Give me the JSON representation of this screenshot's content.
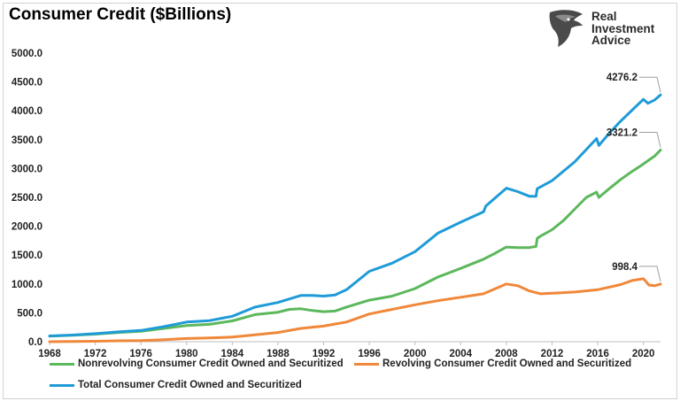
{
  "title": "Consumer Credit ($Billions)",
  "logo": {
    "icon": "eagle-head-icon",
    "line1": "Real",
    "line2": "Investment",
    "line3": "Advice"
  },
  "chart_data": {
    "type": "line",
    "title": "Consumer Credit ($Billions)",
    "xlabel": "",
    "ylabel": "",
    "xlim": [
      1968,
      2021.5
    ],
    "ylim": [
      0,
      5000
    ],
    "yticks": [
      "0.0",
      "500.0",
      "1000.0",
      "1500.0",
      "2000.0",
      "2500.0",
      "3000.0",
      "3500.0",
      "4000.0",
      "4500.0",
      "5000.0"
    ],
    "xticks": [
      "1968",
      "1972",
      "1976",
      "1980",
      "1984",
      "1988",
      "1992",
      "1996",
      "2000",
      "2004",
      "2008",
      "2012",
      "2016",
      "2020"
    ],
    "legend_position": "bottom",
    "grid": false,
    "series": [
      {
        "name": "Nonrevolving Consumer Credit Owned and Securitized",
        "color": "#5cb85c",
        "x": [
          1968,
          1970,
          1972,
          1974,
          1976,
          1978,
          1980,
          1982,
          1984,
          1986,
          1988,
          1989,
          1990,
          1991,
          1992,
          1993,
          1994,
          1996,
          1998,
          2000,
          2002,
          2004,
          2006,
          2007,
          2008,
          2009,
          2010,
          2010.6,
          2010.7,
          2011,
          2012,
          2013,
          2014,
          2015,
          2015.9,
          2016.1,
          2017,
          2018,
          2019,
          2020,
          2020.5,
          2021,
          2021.5
        ],
        "values": [
          95,
          110,
          130,
          160,
          180,
          230,
          280,
          300,
          360,
          470,
          510,
          560,
          570,
          540,
          520,
          530,
          600,
          720,
          790,
          920,
          1120,
          1270,
          1430,
          1530,
          1640,
          1630,
          1630,
          1650,
          1790,
          1830,
          1940,
          2100,
          2300,
          2500,
          2590,
          2500,
          2650,
          2810,
          2950,
          3080,
          3150,
          3220,
          3321.2
        ],
        "end_label": "3321.2"
      },
      {
        "name": "Revolving Consumer Credit Owned and Securitized",
        "color": "#f0883a",
        "x": [
          1968,
          1970,
          1972,
          1974,
          1976,
          1978,
          1980,
          1982,
          1984,
          1986,
          1988,
          1990,
          1992,
          1994,
          1996,
          1998,
          2000,
          2002,
          2004,
          2006,
          2008,
          2009,
          2010,
          2011,
          2012,
          2014,
          2016,
          2018,
          2019,
          2020,
          2020.5,
          2021,
          2021.5
        ],
        "values": [
          0,
          4,
          8,
          15,
          20,
          35,
          55,
          65,
          80,
          120,
          160,
          230,
          270,
          340,
          480,
          560,
          640,
          710,
          770,
          830,
          1000,
          970,
          880,
          830,
          840,
          860,
          900,
          990,
          1060,
          1090,
          980,
          970,
          998.4
        ],
        "end_label": "998.4"
      },
      {
        "name": "Total Consumer Credit Owned and Securitized",
        "color": "#1f9bd7",
        "x": [
          1968,
          1970,
          1972,
          1974,
          1976,
          1978,
          1980,
          1982,
          1984,
          1986,
          1988,
          1990,
          1991,
          1992,
          1993,
          1994,
          1996,
          1998,
          2000,
          2001,
          2002,
          2004,
          2006,
          2006.2,
          2008,
          2009,
          2010,
          2010.6,
          2010.7,
          2012,
          2014,
          2015.9,
          2016.1,
          2017,
          2018,
          2019,
          2020,
          2020.4,
          2021,
          2021.5
        ],
        "values": [
          100,
          115,
          140,
          170,
          195,
          260,
          340,
          365,
          440,
          600,
          680,
          800,
          800,
          790,
          810,
          900,
          1220,
          1360,
          1560,
          1720,
          1880,
          2070,
          2250,
          2350,
          2660,
          2600,
          2520,
          2520,
          2650,
          2790,
          3120,
          3520,
          3400,
          3610,
          3820,
          4010,
          4200,
          4130,
          4190,
          4276.2
        ],
        "end_label": "4276.2"
      }
    ]
  }
}
